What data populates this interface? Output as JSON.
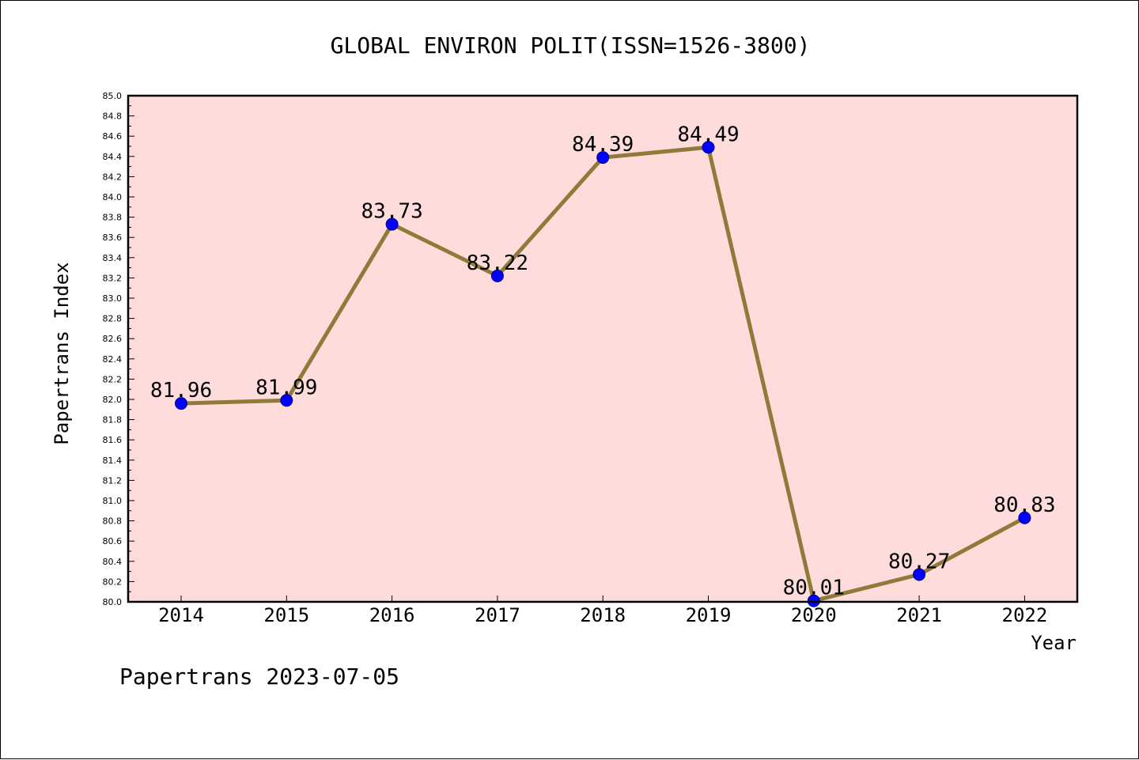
{
  "chart_data": {
    "type": "line",
    "title": "GLOBAL ENVIRON POLIT(ISSN=1526-3800)",
    "xlabel": "Year",
    "ylabel": "Papertrans Index",
    "categories": [
      "2014",
      "2015",
      "2016",
      "2017",
      "2018",
      "2019",
      "2020",
      "2021",
      "2022"
    ],
    "series": [
      {
        "values": [
          81.96,
          81.99,
          83.73,
          83.22,
          84.39,
          84.49,
          80.01,
          80.27,
          80.83
        ],
        "data_labels": [
          "81.96",
          "81.99",
          "83.73",
          "83.22",
          "84.39",
          "84.49",
          "80.01",
          "80.27",
          "80.83"
        ]
      }
    ],
    "ylim": [
      80.0,
      85.0
    ],
    "ytick_step": 0.2,
    "yticks": [
      "80.0",
      "80.2",
      "80.4",
      "80.6",
      "80.8",
      "81.0",
      "81.2",
      "81.4",
      "81.6",
      "81.8",
      "82.0",
      "82.2",
      "82.4",
      "82.6",
      "82.8",
      "83.0",
      "83.2",
      "83.4",
      "83.6",
      "83.8",
      "84.0",
      "84.2",
      "84.4",
      "84.6",
      "84.8",
      "85.0"
    ],
    "grid": false,
    "colors": {
      "plot_background": "#ffdcdc",
      "line": "#8e7b3a",
      "marker": "#0000ff",
      "marker_edge": "#000080"
    }
  },
  "footer": "Papertrans 2023-07-05"
}
